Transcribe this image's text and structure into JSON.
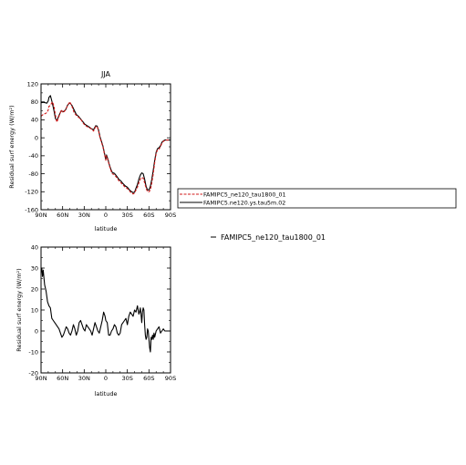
{
  "chart_data": [
    {
      "type": "line",
      "title": "JJA",
      "xlabel": "latitude",
      "ylabel": "Residual surf energy (W/m²)",
      "xlim": [
        90,
        -90
      ],
      "ylim": [
        -160,
        120
      ],
      "x_ticks": [
        90,
        60,
        30,
        0,
        -30,
        -60,
        -90
      ],
      "x_tick_labels": [
        "90N",
        "60N",
        "30N",
        "0",
        "30S",
        "60S",
        "90S"
      ],
      "y_ticks": [
        -160,
        -120,
        -80,
        -40,
        0,
        40,
        80,
        120
      ],
      "y_tick_labels": [
        "-160",
        "-120",
        "-80",
        "-40",
        "0",
        "40",
        "80",
        "120"
      ],
      "legend_placement": "right",
      "series": [
        {
          "name": "FAMIPC5_ne120_tau1800_01",
          "color": "#d11a1a",
          "dash": "dashed",
          "x": [
            90,
            87,
            84,
            82,
            80,
            79,
            77,
            75,
            74,
            72,
            70,
            68,
            65,
            62,
            59,
            56,
            53,
            50,
            47,
            44,
            41,
            38,
            35,
            32,
            29,
            26,
            23,
            20,
            17,
            14,
            12,
            10,
            8,
            6,
            4,
            2,
            0,
            -1,
            -3,
            -5,
            -7,
            -9,
            -12,
            -15,
            -18,
            -21,
            -24,
            -27,
            -30,
            -33,
            -35,
            -38,
            -40,
            -42,
            -44,
            -46,
            -48,
            -50,
            -52,
            -54,
            -56,
            -58,
            -60,
            -62,
            -64,
            -66,
            -68,
            -70,
            -72,
            -74,
            -76,
            -78,
            -80,
            -82,
            -84,
            -86,
            -88,
            -90
          ],
          "values": [
            48,
            52,
            54,
            56,
            62,
            70,
            72,
            78,
            80,
            70,
            50,
            35,
            48,
            62,
            56,
            62,
            72,
            80,
            70,
            56,
            50,
            46,
            42,
            34,
            28,
            25,
            22,
            20,
            15,
            25,
            25,
            15,
            0,
            -10,
            -20,
            -35,
            -50,
            -40,
            -50,
            -62,
            -72,
            -80,
            -82,
            -88,
            -95,
            -100,
            -105,
            -110,
            -113,
            -118,
            -122,
            -125,
            -123,
            -116,
            -110,
            -100,
            -92,
            -88,
            -90,
            -100,
            -112,
            -120,
            -120,
            -116,
            -100,
            -80,
            -55,
            -35,
            -26,
            -25,
            -20,
            -12,
            -8,
            -6,
            -5,
            -5,
            -5,
            -5
          ]
        },
        {
          "name": "FAMIPC5.ne120.ys.tau5m.02",
          "color": "#000000",
          "dash": "solid",
          "x": [
            90,
            87,
            84,
            82,
            80,
            79,
            77,
            75,
            74,
            72,
            70,
            68,
            65,
            62,
            59,
            56,
            53,
            50,
            47,
            44,
            41,
            38,
            35,
            32,
            29,
            26,
            23,
            20,
            17,
            14,
            12,
            10,
            8,
            6,
            4,
            2,
            0,
            -1,
            -3,
            -5,
            -7,
            -9,
            -12,
            -15,
            -18,
            -21,
            -24,
            -27,
            -30,
            -33,
            -35,
            -38,
            -40,
            -42,
            -44,
            -46,
            -48,
            -50,
            -52,
            -54,
            -56,
            -58,
            -60,
            -62,
            -64,
            -66,
            -68,
            -70,
            -72,
            -74,
            -76,
            -78,
            -80,
            -82,
            -84,
            -86,
            -88,
            -90
          ],
          "values": [
            78,
            79,
            78,
            77,
            82,
            90,
            94,
            82,
            75,
            60,
            43,
            38,
            50,
            60,
            58,
            62,
            73,
            78,
            72,
            62,
            52,
            48,
            42,
            36,
            30,
            27,
            24,
            20,
            18,
            27,
            26,
            17,
            2,
            -8,
            -18,
            -33,
            -48,
            -38,
            -48,
            -60,
            -70,
            -77,
            -79,
            -85,
            -92,
            -96,
            -102,
            -107,
            -110,
            -116,
            -119,
            -122,
            -121,
            -112,
            -104,
            -92,
            -83,
            -78,
            -80,
            -92,
            -108,
            -116,
            -116,
            -108,
            -92,
            -72,
            -50,
            -32,
            -24,
            -22,
            -18,
            -10,
            -7,
            -5,
            -5,
            -5,
            -5,
            -5
          ]
        }
      ]
    },
    {
      "type": "line",
      "title": "",
      "xlabel": "latitude",
      "ylabel": "Residual surf energy (W/m²)",
      "xlim": [
        90,
        -90
      ],
      "ylim": [
        -20,
        40
      ],
      "x_ticks": [
        90,
        60,
        30,
        0,
        -30,
        -60,
        -90
      ],
      "x_tick_labels": [
        "90N",
        "60N",
        "30N",
        "0",
        "30S",
        "60S",
        "90S"
      ],
      "y_ticks": [
        -20,
        -10,
        0,
        10,
        20,
        30,
        40
      ],
      "y_tick_labels": [
        "-20",
        "-10",
        "0",
        "10",
        "20",
        "30",
        "40"
      ],
      "legend_label": "FAMIPC5_ne120_tau1800_01",
      "series": [
        {
          "name": "",
          "color": "#000000",
          "dash": "solid",
          "x": [
            90,
            89,
            88,
            87,
            85,
            83,
            81,
            79,
            77,
            75,
            73,
            71,
            69,
            67,
            65,
            63,
            61,
            59,
            57,
            55,
            53,
            51,
            49,
            47,
            45,
            43,
            41,
            39,
            37,
            35,
            33,
            31,
            29,
            27,
            25,
            23,
            21,
            19,
            17,
            15,
            13,
            11,
            9,
            7,
            5,
            3,
            1,
            0,
            -2,
            -4,
            -6,
            -8,
            -10,
            -12,
            -14,
            -16,
            -18,
            -20,
            -22,
            -24,
            -26,
            -28,
            -30,
            -32,
            -34,
            -36,
            -38,
            -40,
            -42,
            -44,
            -46,
            -47,
            -48,
            -49,
            -50,
            -51,
            -52,
            -53,
            -54,
            -55,
            -56,
            -57,
            -58,
            -59,
            -60,
            -61,
            -62,
            -63,
            -64,
            -65,
            -66,
            -67,
            -68,
            -70,
            -72,
            -74,
            -76,
            -78,
            -80,
            -82,
            -84,
            -86,
            -88,
            -90
          ],
          "values": [
            28,
            30,
            26,
            29,
            22,
            19,
            14,
            12,
            11,
            6,
            5,
            4,
            3,
            2,
            1,
            -1,
            -3,
            -2,
            0,
            2,
            1,
            -1,
            -2,
            0,
            3,
            1,
            -2,
            0,
            4,
            5,
            3,
            1,
            0,
            3,
            2,
            1,
            0,
            -2,
            1,
            4,
            2,
            0,
            -1,
            2,
            5,
            9,
            7,
            5,
            4,
            -2,
            -2,
            0,
            1,
            3,
            2,
            -1,
            -2,
            -1,
            3,
            4,
            5,
            6,
            3,
            7,
            9,
            8,
            7,
            10,
            9,
            12,
            8,
            9,
            11,
            8,
            4,
            9,
            11,
            10,
            3,
            -2,
            -4,
            -3,
            1,
            0,
            -4,
            -8,
            -10,
            -3,
            -4,
            -2,
            -4,
            -1,
            -3,
            0,
            1,
            2,
            -1,
            0,
            1,
            0,
            0,
            0,
            0,
            0
          ]
        }
      ]
    }
  ]
}
